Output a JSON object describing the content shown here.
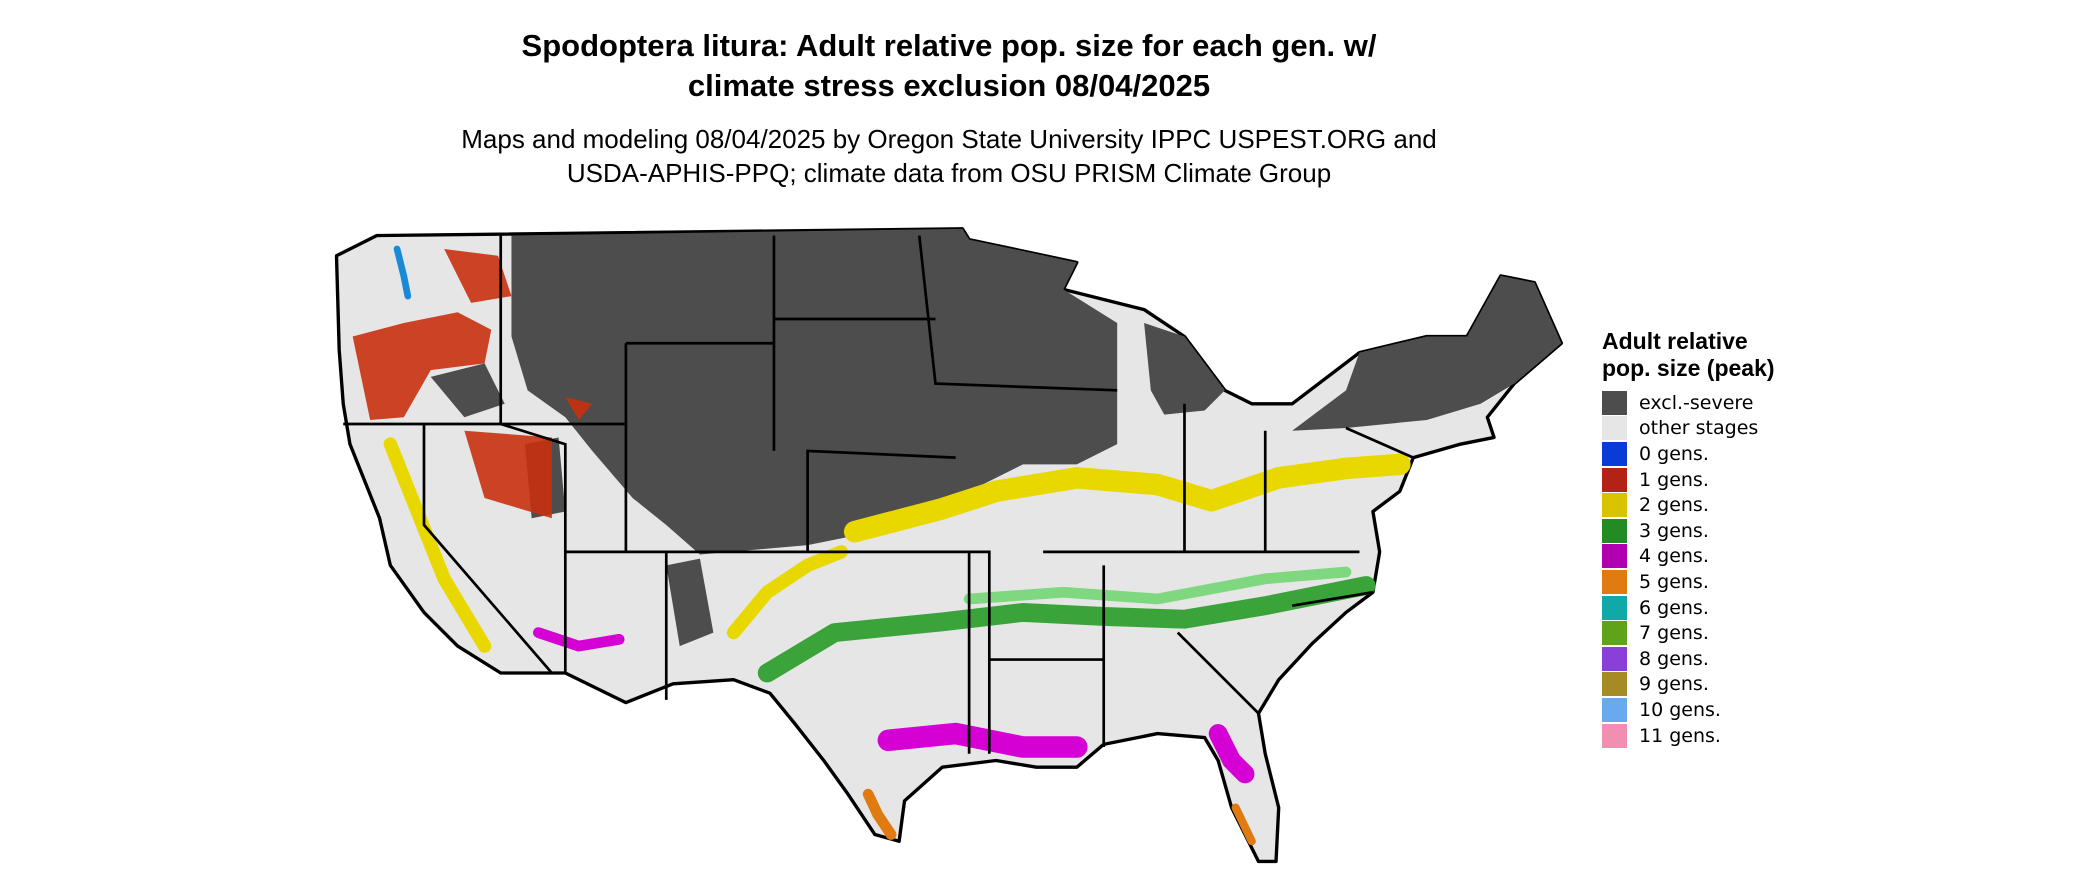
{
  "title": "Spodoptera litura: Adult relative pop. size for each gen. w/ climate stress exclusion 08/04/2025",
  "subtitle": "Maps and modeling 08/04/2025 by Oregon State University IPPC USPEST.ORG and USDA-APHIS-PPQ; climate data from OSU PRISM Climate Group",
  "legend": {
    "title": "Adult relative pop. size (peak)",
    "items": [
      {
        "label": "excl.-severe",
        "color": "#4d4d4d"
      },
      {
        "label": "other stages",
        "color": "#e6e6e6"
      },
      {
        "label": "0 gens.",
        "color": "#0a3bd6"
      },
      {
        "label": "1 gens.",
        "color": "#b22215"
      },
      {
        "label": "2 gens.",
        "color": "#d9c300"
      },
      {
        "label": "3 gens.",
        "color": "#228b22"
      },
      {
        "label": "4 gens.",
        "color": "#b000b0"
      },
      {
        "label": "5 gens.",
        "color": "#e07b12"
      },
      {
        "label": "6 gens.",
        "color": "#10a8a8"
      },
      {
        "label": "7 gens.",
        "color": "#5fa31a"
      },
      {
        "label": "8 gens.",
        "color": "#8a3fd9"
      },
      {
        "label": "9 gens.",
        "color": "#a68a25"
      },
      {
        "label": "10 gens.",
        "color": "#6aa9ee"
      },
      {
        "label": "11 gens.",
        "color": "#f08fb0"
      }
    ]
  }
}
